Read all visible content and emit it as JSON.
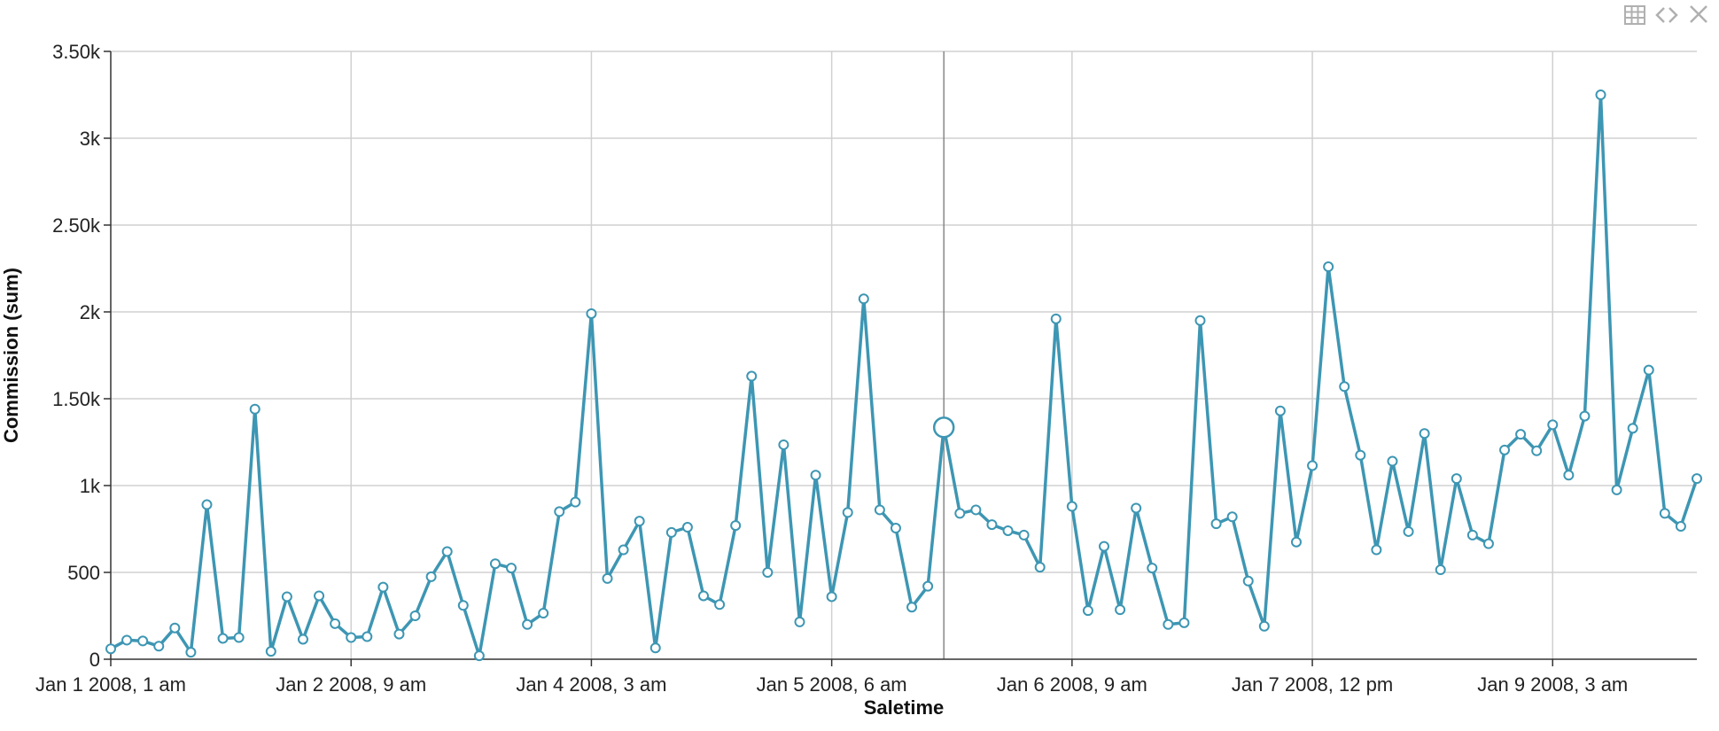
{
  "toolbar": {
    "table_icon": "table-icon",
    "code_icon": "code-icon",
    "close_icon": "close-icon",
    "icon_color": "#b0b0b0"
  },
  "chart_data": {
    "type": "line",
    "xlabel": "Saletime",
    "ylabel": "Commission (sum)",
    "x_start": "Jan 1 2008, 1 am",
    "x_end": "Jan 10 2008, 10 am",
    "ylim": [
      0,
      3500
    ],
    "yticks": [
      {
        "value": 0,
        "label": "0"
      },
      {
        "value": 500,
        "label": "500"
      },
      {
        "value": 1000,
        "label": "1k"
      },
      {
        "value": 1500,
        "label": "1.50k"
      },
      {
        "value": 2000,
        "label": "2k"
      },
      {
        "value": 2500,
        "label": "2.50k"
      },
      {
        "value": 3000,
        "label": "3k"
      },
      {
        "value": 3500,
        "label": "3.50k"
      }
    ],
    "xticks": [
      {
        "index": 0,
        "label": "Jan 1 2008, 1 am"
      },
      {
        "index": 15,
        "label": "Jan 2 2008, 9 am"
      },
      {
        "index": 30,
        "label": "Jan 4 2008, 3 am"
      },
      {
        "index": 45,
        "label": "Jan 5 2008, 6 am"
      },
      {
        "index": 60,
        "label": "Jan 6 2008, 9 am"
      },
      {
        "index": 75,
        "label": "Jan 7 2008, 12 pm"
      },
      {
        "index": 90,
        "label": "Jan 9 2008, 3 am"
      }
    ],
    "hover_index": 52,
    "grid": true,
    "line_color": "#3d96b3",
    "series": [
      {
        "values": [
          60,
          110,
          105,
          75,
          180,
          40,
          890,
          120,
          125,
          1440,
          45,
          360,
          115,
          365,
          205,
          125,
          130,
          415,
          145,
          250,
          475,
          620,
          310,
          20,
          550,
          525,
          200,
          265,
          850,
          905,
          1990,
          465,
          630,
          795,
          65,
          730,
          760,
          365,
          315,
          770,
          1630,
          500,
          1235,
          215,
          1060,
          360,
          845,
          2075,
          860,
          755,
          300,
          420,
          1335,
          840,
          860,
          775,
          740,
          715,
          530,
          1960,
          880,
          280,
          650,
          285,
          870,
          525,
          200,
          210,
          1950,
          780,
          820,
          450,
          190,
          1430,
          675,
          1115,
          2260,
          1570,
          1175,
          630,
          1140,
          735,
          1300,
          515,
          1040,
          715,
          665,
          1205,
          1295,
          1200,
          1350,
          1060,
          1400,
          3250,
          975,
          1330,
          1665,
          840,
          765,
          1040
        ]
      }
    ]
  }
}
